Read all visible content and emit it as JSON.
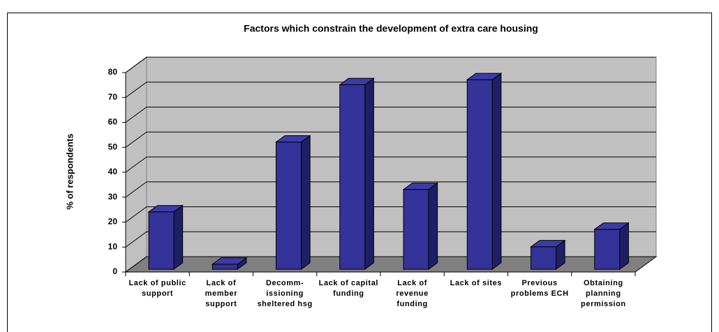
{
  "chart_data": {
    "type": "bar3d",
    "title": "Factors which constrain the development of extra care housing",
    "ylabel": "% of respondents",
    "categories": [
      "Lack of public support",
      "Lack of member support",
      "Decomm-issioning sheltered hsg",
      "Lack of capital funding",
      "Lack of revenue funding",
      "Lack of sites",
      "Previous problems ECH",
      "Obtaining planning permission"
    ],
    "values": [
      23,
      2,
      51,
      74,
      32,
      76,
      9,
      16
    ],
    "color": "#333399",
    "ylim": [
      0,
      80
    ],
    "yticks": [
      0,
      10,
      20,
      30,
      40,
      50,
      60,
      70,
      80
    ],
    "grid": true
  }
}
